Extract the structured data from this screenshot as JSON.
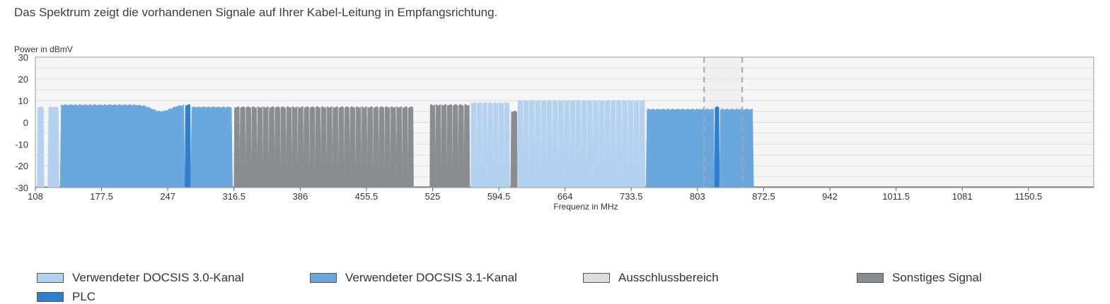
{
  "intro_text": "Das Spektrum zeigt die vorhandenen Signale auf Ihrer Kabel-Leitung in Empfangsrichtung.",
  "colors": {
    "docsis30": "#b4d2ef",
    "docsis31": "#6aa7dd",
    "plc": "#2f7fd0",
    "other": "#8a8d8f",
    "exclusion": "#e6e6e6",
    "plot_bg": "#f5f5f5",
    "grid": "#dcdcdc"
  },
  "legend": [
    {
      "key": "docsis30",
      "label": "Verwendeter DOCSIS 3.0-Kanal"
    },
    {
      "key": "docsis31",
      "label": "Verwendeter DOCSIS 3.1-Kanal"
    },
    {
      "key": "exclusion",
      "label": "Ausschlussbereich"
    },
    {
      "key": "other",
      "label": "Sonstiges Signal"
    },
    {
      "key": "plc",
      "label": "PLC"
    }
  ],
  "chart_data": {
    "type": "area",
    "title": "",
    "xlabel": "Frequenz in MHz",
    "ylabel": "Power in dBmV",
    "xlim": [
      108,
      1219
    ],
    "ylim": [
      -30,
      30
    ],
    "x_ticks": [
      "108",
      "177.5",
      "247",
      "316.5",
      "386",
      "455.5",
      "525",
      "594.5",
      "664",
      "733.5",
      "803",
      "872.5",
      "942",
      "1011.5",
      "1081",
      "1150.5"
    ],
    "y_ticks": [
      "30",
      "20",
      "10",
      "0",
      "-10",
      "-20",
      "-30"
    ],
    "grid": true,
    "floor_level": -30,
    "segments": [
      {
        "category": "docsis30",
        "start": 110,
        "end": 117,
        "level": 7
      },
      {
        "category": "docsis30",
        "start": 121,
        "end": 133,
        "level": 7
      },
      {
        "category": "docsis31",
        "start": 134,
        "end": 265,
        "level": 8,
        "dip_center": 240,
        "dip_depth": 3
      },
      {
        "category": "plc",
        "start": 265,
        "end": 271,
        "level": 8
      },
      {
        "category": "docsis31",
        "start": 271,
        "end": 315,
        "level": 7
      },
      {
        "category": "other",
        "start": 316.5,
        "end": 505,
        "level": 7,
        "subchannels": 31
      },
      {
        "category": "other",
        "start": 522,
        "end": 564,
        "level": 8,
        "subchannels": 7
      },
      {
        "category": "docsis30",
        "start": 565,
        "end": 606,
        "level": 9,
        "subchannels": 7
      },
      {
        "category": "other",
        "start": 607,
        "end": 614,
        "level": 5
      },
      {
        "category": "docsis30",
        "start": 614,
        "end": 748,
        "level": 10,
        "subchannels": 22
      },
      {
        "category": "docsis31",
        "start": 749,
        "end": 821,
        "level": 6
      },
      {
        "category": "plc",
        "start": 821,
        "end": 826,
        "level": 7
      },
      {
        "category": "docsis31",
        "start": 826,
        "end": 862,
        "level": 6
      }
    ],
    "exclusion_ranges": [
      {
        "start": 810,
        "end": 850
      }
    ]
  }
}
